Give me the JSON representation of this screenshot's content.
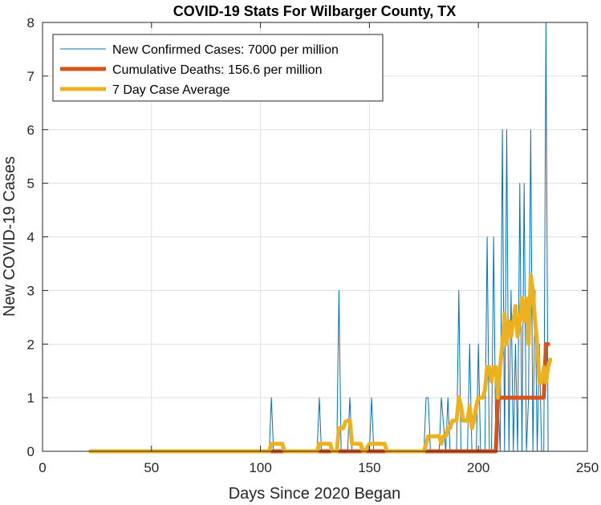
{
  "chart_data": {
    "type": "line",
    "title": "COVID-19 Stats For Wilbarger County, TX",
    "xlabel": "Days Since 2020 Began",
    "ylabel": "New COVID-19 Cases",
    "xlim": [
      0,
      250
    ],
    "ylim": [
      0,
      8
    ],
    "xticks": [
      0,
      50,
      100,
      150,
      200,
      250
    ],
    "yticks": [
      0,
      1,
      2,
      3,
      4,
      5,
      6,
      7,
      8
    ],
    "grid": true,
    "legend_position": "top-left",
    "series": [
      {
        "name": "New Confirmed Cases: 7000 per million",
        "color": "#0072BD",
        "style": "thin",
        "x": [
          22,
          104,
          105,
          106,
          126,
          127,
          128,
          135,
          136,
          137,
          140,
          141,
          142,
          150,
          151,
          152,
          175,
          176,
          177,
          178,
          182,
          183,
          185,
          186,
          187,
          190,
          191,
          192,
          195,
          196,
          197,
          199,
          200,
          201,
          203,
          204,
          205,
          206,
          207,
          208,
          209,
          210,
          211,
          212,
          213,
          214,
          215,
          216,
          217,
          218,
          219,
          220,
          221,
          222,
          223,
          224,
          225,
          226,
          227,
          228,
          229,
          230,
          231,
          232
        ],
        "values": [
          0,
          0,
          1,
          0,
          0,
          1,
          0,
          0,
          3,
          0,
          0,
          1,
          0,
          0,
          1,
          0,
          0,
          1,
          1,
          0,
          0,
          1,
          0,
          1,
          0,
          0,
          3,
          0,
          0,
          2,
          0,
          0,
          2,
          0,
          0,
          4,
          0,
          0,
          4,
          0,
          1,
          0,
          6,
          0,
          6,
          0,
          3,
          0,
          2,
          0,
          5,
          0,
          5,
          0,
          1,
          6,
          0,
          3,
          0,
          2,
          0,
          0,
          8,
          0
        ]
      },
      {
        "name": "Cumulative Deaths: 156.6 per million",
        "color": "#D95319",
        "style": "thick",
        "x": [
          22,
          208,
          209,
          230,
          231,
          232
        ],
        "values": [
          0,
          0,
          1,
          1,
          2,
          2
        ]
      },
      {
        "name": "7 Day Case Average",
        "color": "#EDB120",
        "style": "thick",
        "x": [
          22,
          104,
          105,
          106,
          110,
          111,
          126,
          127,
          128,
          132,
          133,
          135,
          136,
          137,
          138,
          139,
          140,
          141,
          142,
          146,
          147,
          148,
          150,
          151,
          152,
          157,
          158,
          175,
          176,
          177,
          178,
          182,
          183,
          184,
          185,
          186,
          187,
          188,
          190,
          191,
          192,
          193,
          195,
          196,
          197,
          198,
          199,
          200,
          201,
          202,
          203,
          204,
          205,
          206,
          207,
          208,
          209,
          210,
          211,
          212,
          213,
          214,
          215,
          216,
          217,
          218,
          219,
          220,
          221,
          222,
          223,
          224,
          225,
          226,
          227,
          228,
          229,
          230,
          231,
          232,
          233
        ],
        "values": [
          0,
          0,
          0.14,
          0.14,
          0.14,
          0,
          0,
          0.14,
          0.14,
          0.14,
          0,
          0,
          0.43,
          0.43,
          0.43,
          0.55,
          0.57,
          0.57,
          0.14,
          0.14,
          0,
          0,
          0.14,
          0.14,
          0.14,
          0.14,
          0,
          0,
          0.14,
          0.28,
          0.28,
          0.28,
          0.14,
          0.28,
          0.28,
          0.43,
          0.43,
          0.57,
          0.57,
          1.0,
          0.85,
          0.57,
          0.57,
          0.85,
          0.43,
          0.57,
          0.85,
          1.0,
          1.0,
          1.0,
          1.14,
          1.57,
          1.57,
          1.3,
          1.57,
          1.57,
          1.0,
          1.6,
          2.0,
          2.57,
          2.0,
          2.43,
          2.14,
          2.43,
          2.71,
          2.14,
          2.43,
          2.85,
          2.43,
          2.85,
          2.0,
          3.28,
          3.0,
          2.43,
          2.0,
          1.28,
          1.28,
          1.57,
          1.28,
          1.57,
          1.71
        ]
      }
    ]
  }
}
